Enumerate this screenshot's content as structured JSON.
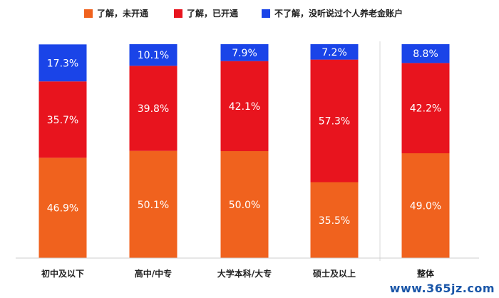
{
  "legend": {
    "items": [
      {
        "label": "了解，未开通",
        "color": "#f0621e"
      },
      {
        "label": "了解，已开通",
        "color": "#e8141e"
      },
      {
        "label": "不了解，没听说过个人养老金账户",
        "color": "#1a44e8"
      }
    ]
  },
  "chart_data": {
    "type": "bar",
    "stacked": true,
    "percent_stacked": true,
    "categories": [
      "初中及以下",
      "高中/中专",
      "大学本科/大专",
      "硕士及以上",
      "整体"
    ],
    "series": [
      {
        "name": "了解，未开通",
        "values": [
          46.9,
          50.1,
          50.0,
          35.5,
          49.0
        ],
        "labels": [
          "46.9%",
          "50.1%",
          "50.0%",
          "35.5%",
          "49.0%"
        ],
        "color": "#f0621e"
      },
      {
        "name": "了解，已开通",
        "values": [
          35.7,
          39.8,
          42.1,
          57.3,
          42.2
        ],
        "labels": [
          "35.7%",
          "39.8%",
          "42.1%",
          "57.3%",
          "42.2%"
        ],
        "color": "#e8141e"
      },
      {
        "name": "不了解，没听说过个人养老金账户",
        "values": [
          17.3,
          10.1,
          7.9,
          7.2,
          8.8
        ],
        "labels": [
          "17.3%",
          "10.1%",
          "7.9%",
          "7.2%",
          "8.8%"
        ],
        "color": "#1a44e8"
      }
    ],
    "title": "",
    "xlabel": "",
    "ylabel": "",
    "ylim": [
      0,
      100
    ],
    "grid": false,
    "legend_position": "top"
  },
  "watermark": "www.365jz.com"
}
